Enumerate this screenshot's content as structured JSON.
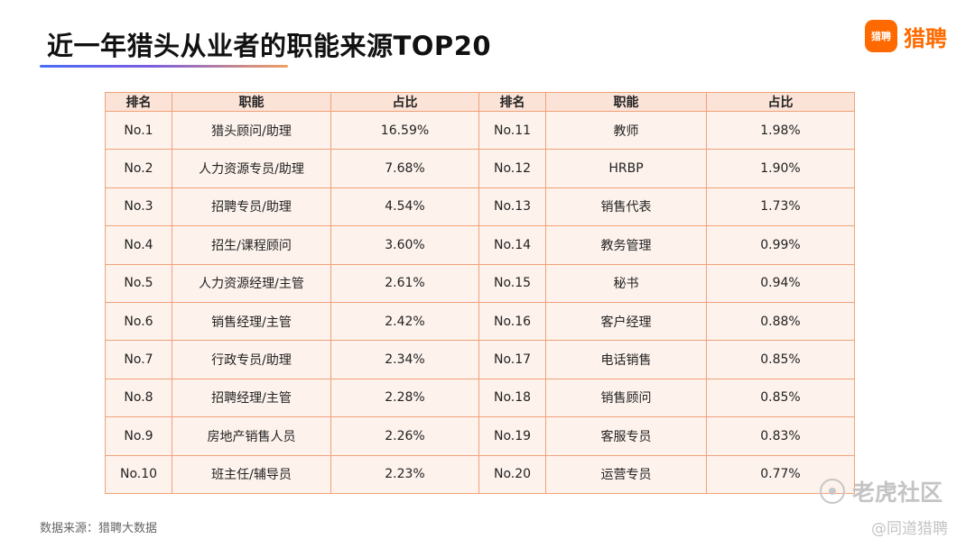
{
  "header": {
    "title": "近一年猎头从业者的职能来源TOP20",
    "logo_mark": "猎聘",
    "logo_text": "猎聘"
  },
  "footer": {
    "source": "数据来源：猎聘大数据"
  },
  "watermark": {
    "primary": "老虎社区",
    "secondary": "@同道猎聘"
  },
  "colors": {
    "brand": "#ff6a00",
    "header_bg": "#fbe3d7",
    "cell_bg": "#fdf2ec",
    "border": "#f0a27a"
  },
  "chart_data": {
    "type": "table",
    "title": "近一年猎头从业者的职能来源TOP20",
    "columns": [
      "排名",
      "职能",
      "占比",
      "排名",
      "职能",
      "占比"
    ],
    "rows": [
      [
        "No.1",
        "猎头顾问/助理",
        "16.59%",
        "No.11",
        "教师",
        "1.98%"
      ],
      [
        "No.2",
        "人力资源专员/助理",
        "7.68%",
        "No.12",
        "HRBP",
        "1.90%"
      ],
      [
        "No.3",
        "招聘专员/助理",
        "4.54%",
        "No.13",
        "销售代表",
        "1.73%"
      ],
      [
        "No.4",
        "招生/课程顾问",
        "3.60%",
        "No.14",
        "教务管理",
        "0.99%"
      ],
      [
        "No.5",
        "人力资源经理/主管",
        "2.61%",
        "No.15",
        "秘书",
        "0.94%"
      ],
      [
        "No.6",
        "销售经理/主管",
        "2.42%",
        "No.16",
        "客户经理",
        "0.88%"
      ],
      [
        "No.7",
        "行政专员/助理",
        "2.34%",
        "No.17",
        "电话销售",
        "0.85%"
      ],
      [
        "No.8",
        "招聘经理/主管",
        "2.28%",
        "No.18",
        "销售顾问",
        "0.85%"
      ],
      [
        "No.9",
        "房地产销售人员",
        "2.26%",
        "No.19",
        "客服专员",
        "0.83%"
      ],
      [
        "No.10",
        "班主任/辅导员",
        "2.23%",
        "No.20",
        "运营专员",
        "0.77%"
      ]
    ]
  }
}
